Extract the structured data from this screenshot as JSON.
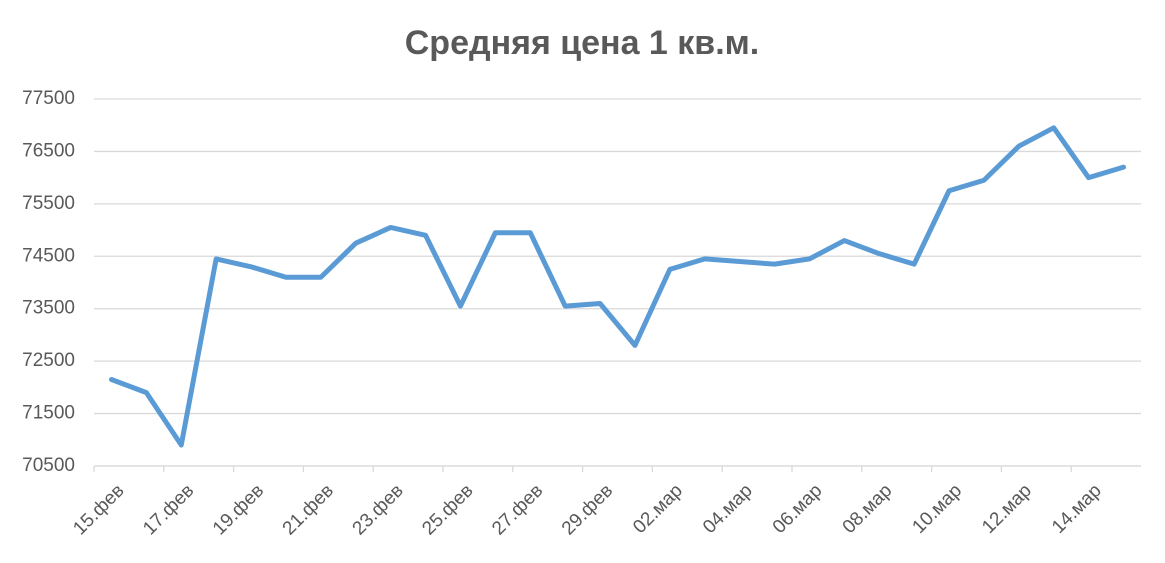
{
  "chart_data": {
    "type": "line",
    "title": "Средняя цена 1 кв.м.",
    "categories": [
      "15.фев",
      null,
      "17.фев",
      null,
      "19.фев",
      null,
      "21.фев",
      null,
      "23.фев",
      null,
      "25.фев",
      null,
      "27.фев",
      null,
      "29.фев",
      null,
      "02.мар",
      null,
      "04.мар",
      null,
      "06.мар",
      null,
      "08.мар",
      null,
      "10.мар",
      null,
      "12.мар",
      null,
      "14.мар",
      null
    ],
    "values": [
      72150,
      71900,
      70900,
      74450,
      74300,
      74100,
      74100,
      74750,
      75050,
      74900,
      73550,
      74950,
      74950,
      73550,
      73600,
      72800,
      74250,
      74450,
      74400,
      74350,
      74450,
      74800,
      74550,
      74350,
      75750,
      75950,
      76600,
      76950,
      76000,
      76200
    ],
    "color": "#5b9bd5",
    "ylim": [
      70500,
      77500
    ],
    "yticks": [
      70500,
      71500,
      72500,
      73500,
      74500,
      75500,
      76500,
      77500
    ],
    "grid": true
  }
}
